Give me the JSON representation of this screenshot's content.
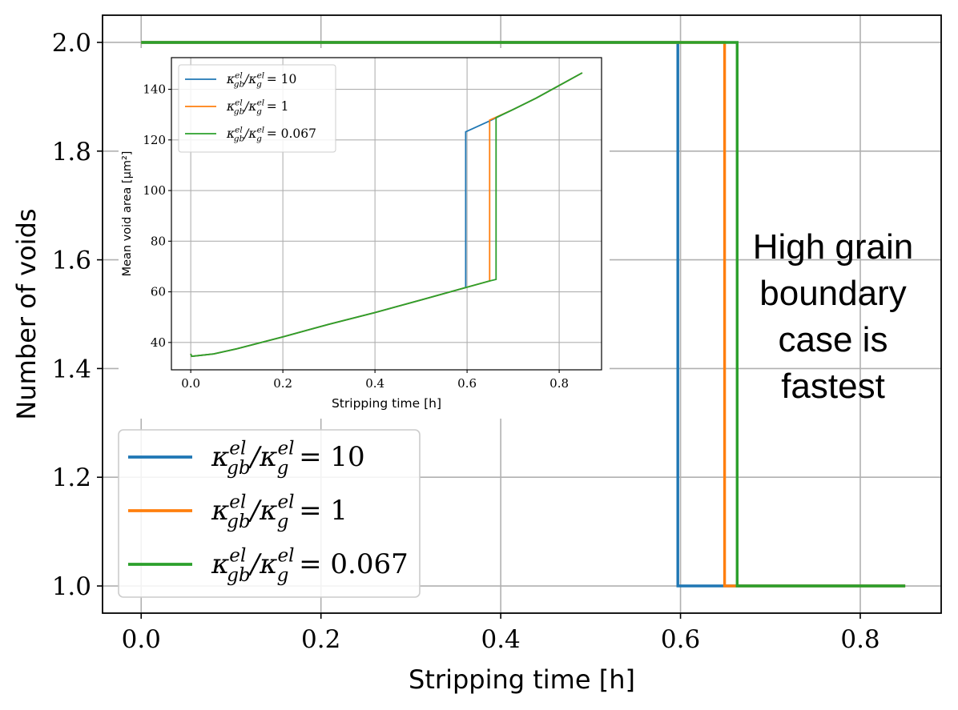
{
  "chart_data": [
    {
      "id": "main",
      "type": "line",
      "step": true,
      "xlabel": "Stripping time [h]",
      "ylabel": "Number of voids",
      "xlim": [
        -0.043,
        0.89
      ],
      "ylim": [
        0.95,
        2.05
      ],
      "xticks": [
        0.0,
        0.2,
        0.4,
        0.6,
        0.8
      ],
      "xtick_labels": [
        "0.0",
        "0.2",
        "0.4",
        "0.6",
        "0.8"
      ],
      "yticks": [
        1.0,
        1.2,
        1.4,
        1.6,
        1.8,
        2.0
      ],
      "ytick_labels": [
        "1.0",
        "1.2",
        "1.4",
        "1.6",
        "1.8",
        "2.0"
      ],
      "grid": true,
      "legend_position": "lower-left",
      "series": [
        {
          "name": "κ_gb^el/κ_g^el = 10",
          "legend_ratio": "10",
          "color": "#1f77b4",
          "x": [
            0.0,
            0.597,
            0.597,
            0.85
          ],
          "y": [
            2,
            2,
            1,
            1
          ]
        },
        {
          "name": "κ_gb^el/κ_g^el = 1",
          "legend_ratio": "1",
          "color": "#ff7f0e",
          "x": [
            0.0,
            0.649,
            0.649,
            0.85
          ],
          "y": [
            2,
            2,
            1,
            1
          ]
        },
        {
          "name": "κ_gb^el/κ_g^el = 0.067",
          "legend_ratio": "0.067",
          "color": "#2ca02c",
          "x": [
            0.0,
            0.663,
            0.663,
            0.85
          ],
          "y": [
            2,
            2,
            1,
            1
          ]
        }
      ],
      "annotation": [
        "High grain",
        "boundary",
        "case  is",
        "fastest"
      ]
    },
    {
      "id": "inset",
      "type": "line",
      "xlabel": "Stripping time [h]",
      "ylabel": "Mean void area [μm²]",
      "xlim": [
        -0.042,
        0.892
      ],
      "ylim": [
        29.2,
        152.5
      ],
      "xticks": [
        0.0,
        0.2,
        0.4,
        0.6,
        0.8
      ],
      "xtick_labels": [
        "0.0",
        "0.2",
        "0.4",
        "0.6",
        "0.8"
      ],
      "yticks": [
        40,
        60,
        80,
        100,
        120,
        140
      ],
      "ytick_labels": [
        "40",
        "60",
        "80",
        "100",
        "120",
        "140"
      ],
      "grid": true,
      "legend_position": "upper-left",
      "series": [
        {
          "name": "κ_gb^el/κ_g^el = 10",
          "legend_ratio": "10",
          "color": "#1f77b4",
          "x": [
            0.0,
            0.002,
            0.05,
            0.1,
            0.2,
            0.3,
            0.4,
            0.5,
            0.597,
            0.597,
            0.649,
            0.7,
            0.75,
            0.8,
            0.85
          ],
          "y": [
            35.5,
            34.5,
            35.5,
            37.5,
            42.2,
            47.2,
            51.8,
            56.8,
            61.7,
            123.2,
            127.5,
            132.0,
            136.5,
            141.5,
            146.5
          ]
        },
        {
          "name": "κ_gb^el/κ_g^el = 1",
          "legend_ratio": "1",
          "color": "#ff7f0e",
          "x": [
            0.0,
            0.002,
            0.05,
            0.1,
            0.2,
            0.3,
            0.4,
            0.5,
            0.597,
            0.649,
            0.649,
            0.7,
            0.75,
            0.8,
            0.85
          ],
          "y": [
            35.5,
            34.5,
            35.5,
            37.5,
            42.2,
            47.2,
            51.8,
            56.8,
            61.7,
            64.3,
            127.8,
            132.0,
            136.5,
            141.5,
            146.5
          ]
        },
        {
          "name": "κ_gb^el/κ_g^el = 0.067",
          "legend_ratio": "0.067",
          "color": "#2ca02c",
          "x": [
            0.0,
            0.002,
            0.05,
            0.1,
            0.2,
            0.3,
            0.4,
            0.5,
            0.597,
            0.649,
            0.663,
            0.663,
            0.7,
            0.75,
            0.8,
            0.85
          ],
          "y": [
            35.5,
            34.5,
            35.5,
            37.5,
            42.2,
            47.2,
            51.8,
            56.8,
            61.7,
            64.3,
            64.9,
            128.8,
            132.0,
            136.5,
            141.5,
            146.5
          ]
        }
      ]
    }
  ]
}
